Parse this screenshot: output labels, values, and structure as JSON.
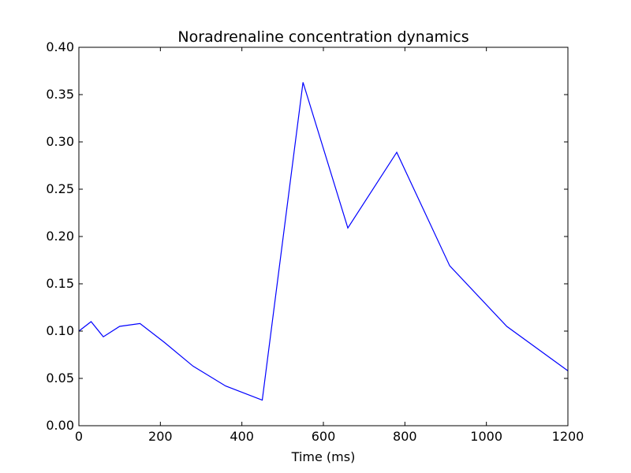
{
  "chart_data": {
    "type": "line",
    "title": "Noradrenaline concentration dynamics",
    "xlabel": "Time (ms)",
    "ylabel": "",
    "xlim": [
      0,
      1200
    ],
    "ylim": [
      0,
      0.4
    ],
    "x_ticks": [
      0,
      200,
      400,
      600,
      800,
      1000,
      1200
    ],
    "x_tick_labels": [
      "0",
      "200",
      "400",
      "600",
      "800",
      "1000",
      "1200"
    ],
    "y_ticks": [
      0,
      0.05,
      0.1,
      0.15,
      0.2,
      0.25,
      0.3,
      0.35,
      0.4
    ],
    "y_tick_labels": [
      "0.00",
      "0.05",
      "0.10",
      "0.15",
      "0.20",
      "0.25",
      "0.30",
      "0.35",
      "0.40"
    ],
    "grid": false,
    "series": [
      {
        "color": "#0000ff",
        "x": [
          0,
          30,
          60,
          100,
          150,
          210,
          280,
          360,
          450,
          550,
          660,
          780,
          910,
          1050,
          1200
        ],
        "y": [
          0.1,
          0.11,
          0.094,
          0.105,
          0.108,
          0.088,
          0.063,
          0.042,
          0.027,
          0.363,
          0.209,
          0.289,
          0.169,
          0.105,
          0.058
        ]
      }
    ]
  }
}
